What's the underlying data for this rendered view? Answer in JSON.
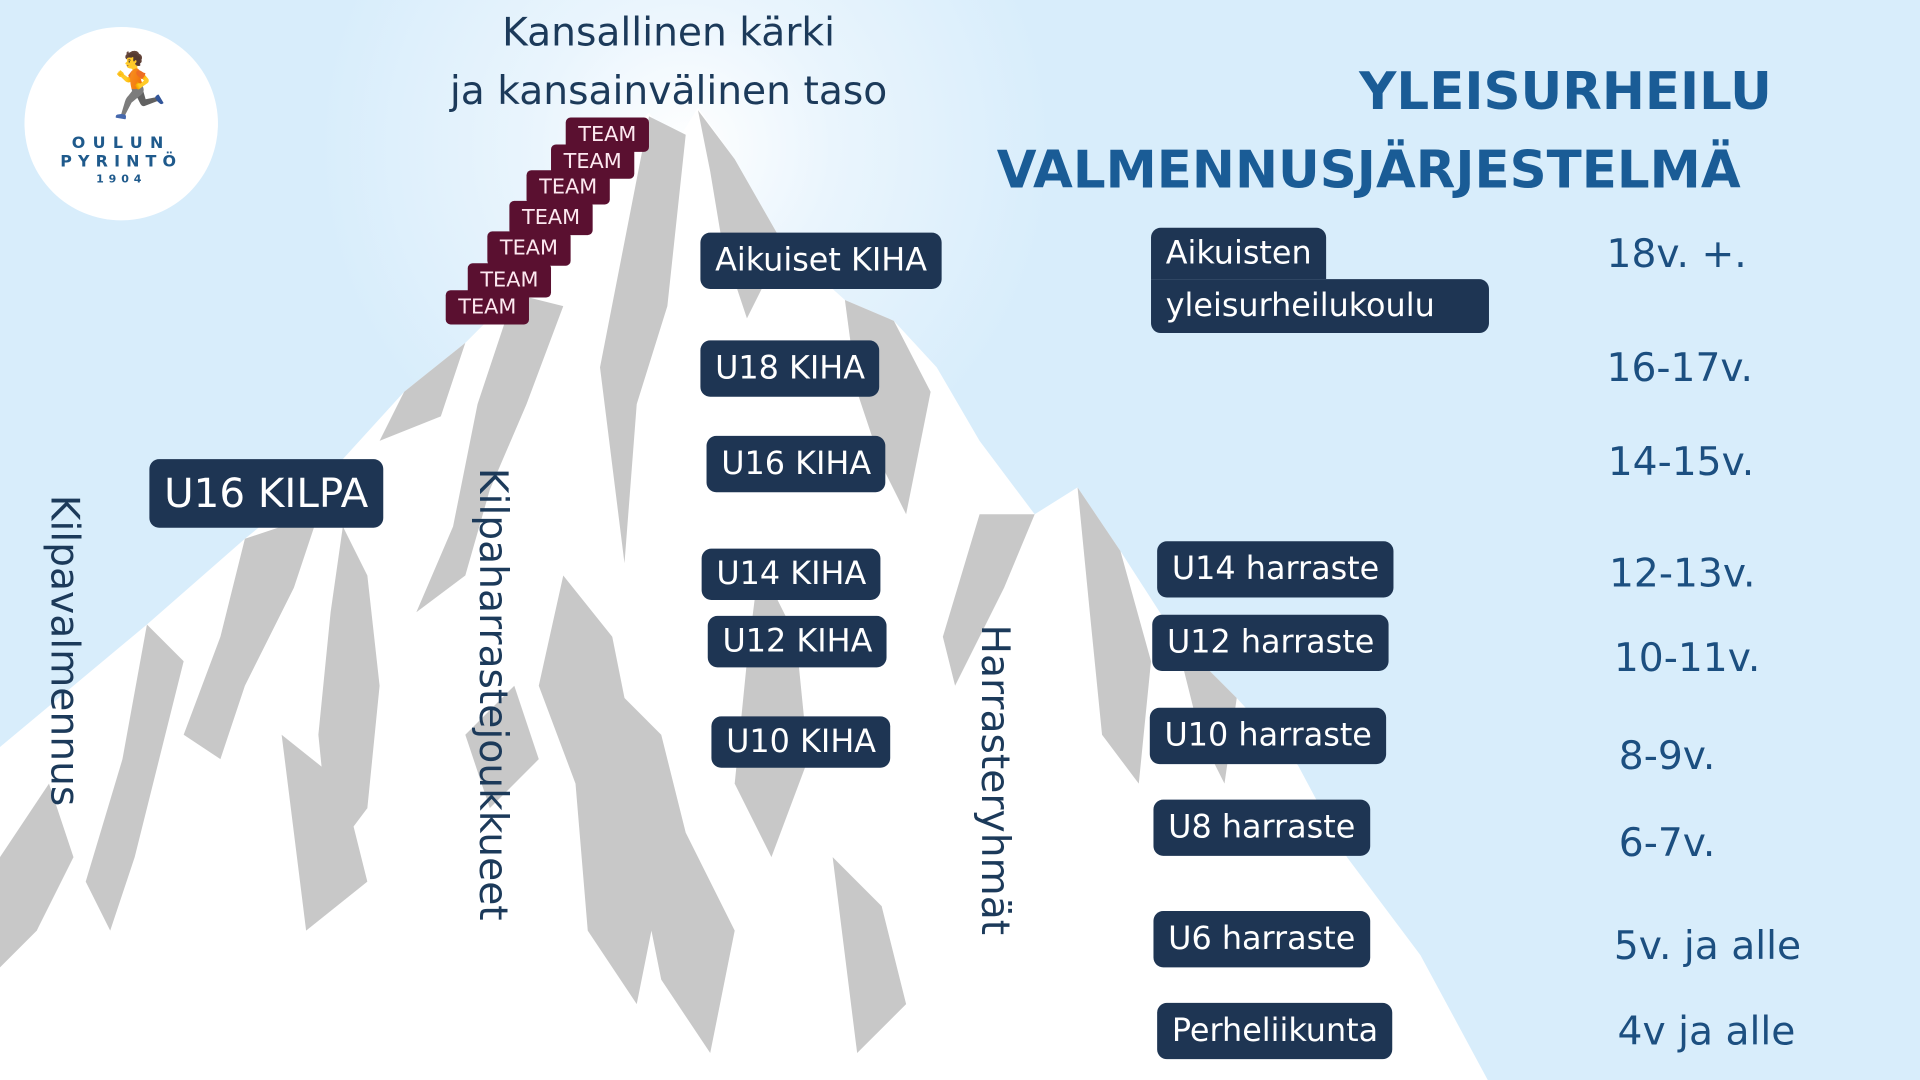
{
  "logo": {
    "line1": "OULUN",
    "line2": "PYRINTÖ",
    "year": "1904"
  },
  "top_label": {
    "line1": "Kansallinen kärki",
    "line2": "ja kansainvälinen taso"
  },
  "title": {
    "line1": "YLEISURHEILU",
    "line2": "VALMENNUSJÄRJESTELMÄ"
  },
  "team_boxes": [
    "TEAM",
    "TEAM",
    "TEAM",
    "TEAM",
    "TEAM",
    "TEAM",
    "TEAM"
  ],
  "paths": {
    "left": "Kilpavalmennus",
    "middle": "Kilpaharrastejoukkueet",
    "right": "Harrasteryhmät"
  },
  "kilpa": "U16 KILPA",
  "kiha": [
    "Aikuiset KIHA",
    "U18 KIHA",
    "U16 KIHA",
    "U14 KIHA",
    "U12 KIHA",
    "U10 KIHA"
  ],
  "harraste": {
    "adult_line1": "Aikuisten",
    "adult_line2": "yleisurheilukoulu",
    "groups": [
      "U14 harraste",
      "U12 harraste",
      "U10 harraste",
      "U8 harraste",
      "U6 harraste",
      "Perheliikunta"
    ]
  },
  "ages": [
    "18v. +.",
    "16-17v.",
    "14-15v.",
    "12-13v.",
    "10-11v.",
    "8-9v.",
    "6-7v.",
    "5v. ja alle",
    "4v ja alle"
  ],
  "colors": {
    "box": "#1e3553",
    "team": "#5a1030",
    "title": "#1a5c96",
    "background": "#d8edfb"
  }
}
